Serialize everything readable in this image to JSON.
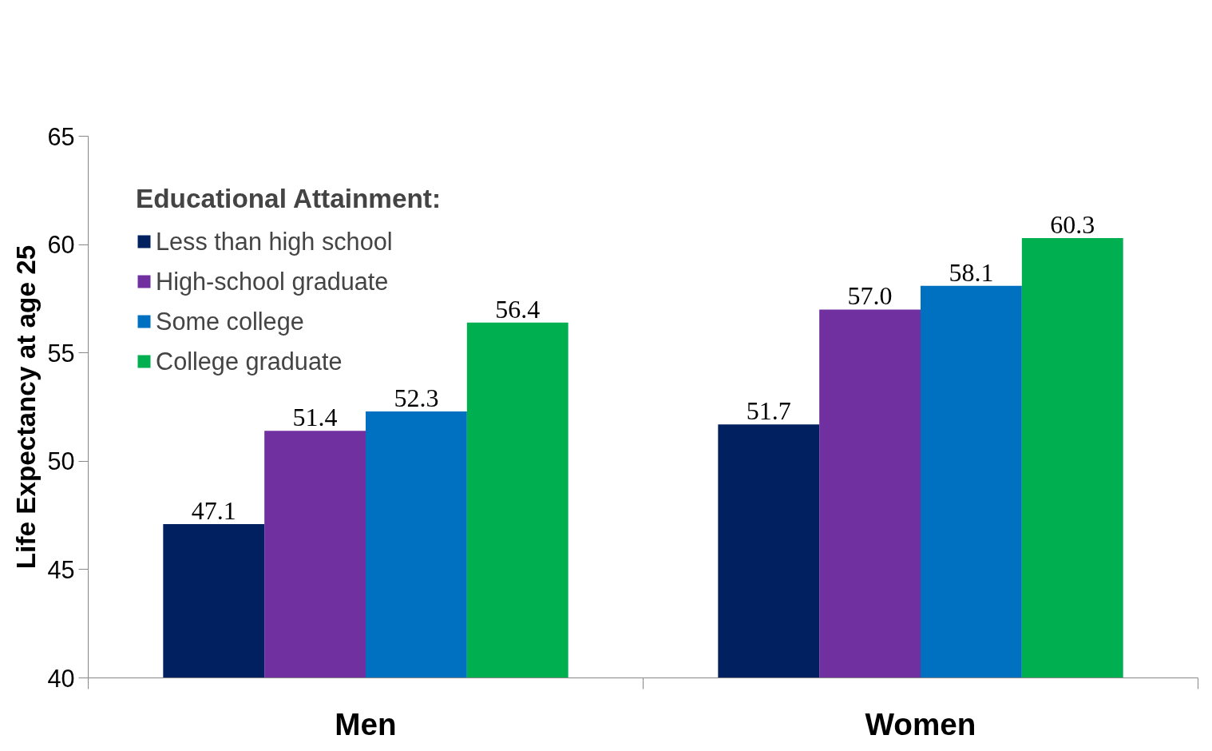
{
  "chart_data": {
    "type": "bar",
    "ylabel": "Life Expectancy at age 25",
    "legend_title": "Educational Attainment:",
    "categories": [
      "Men",
      "Women"
    ],
    "series": [
      {
        "name": "Less than high school",
        "color": "#002060",
        "values": [
          47.1,
          51.7
        ],
        "value_labels": [
          "47.1",
          "51.7"
        ]
      },
      {
        "name": "High-school graduate",
        "color": "#7030a0",
        "values": [
          51.4,
          57.0
        ],
        "value_labels": [
          "51.4",
          "57.0"
        ]
      },
      {
        "name": "Some college",
        "color": "#0070c0",
        "values": [
          52.3,
          58.1
        ],
        "value_labels": [
          "52.3",
          "58.1"
        ]
      },
      {
        "name": "College graduate",
        "color": "#00b050",
        "values": [
          56.4,
          60.3
        ],
        "value_labels": [
          "56.4",
          "60.3"
        ]
      }
    ],
    "ylim": [
      40,
      65
    ],
    "yticks": [
      40,
      45,
      50,
      55,
      60,
      65
    ],
    "grid": false,
    "legend": "top left"
  }
}
